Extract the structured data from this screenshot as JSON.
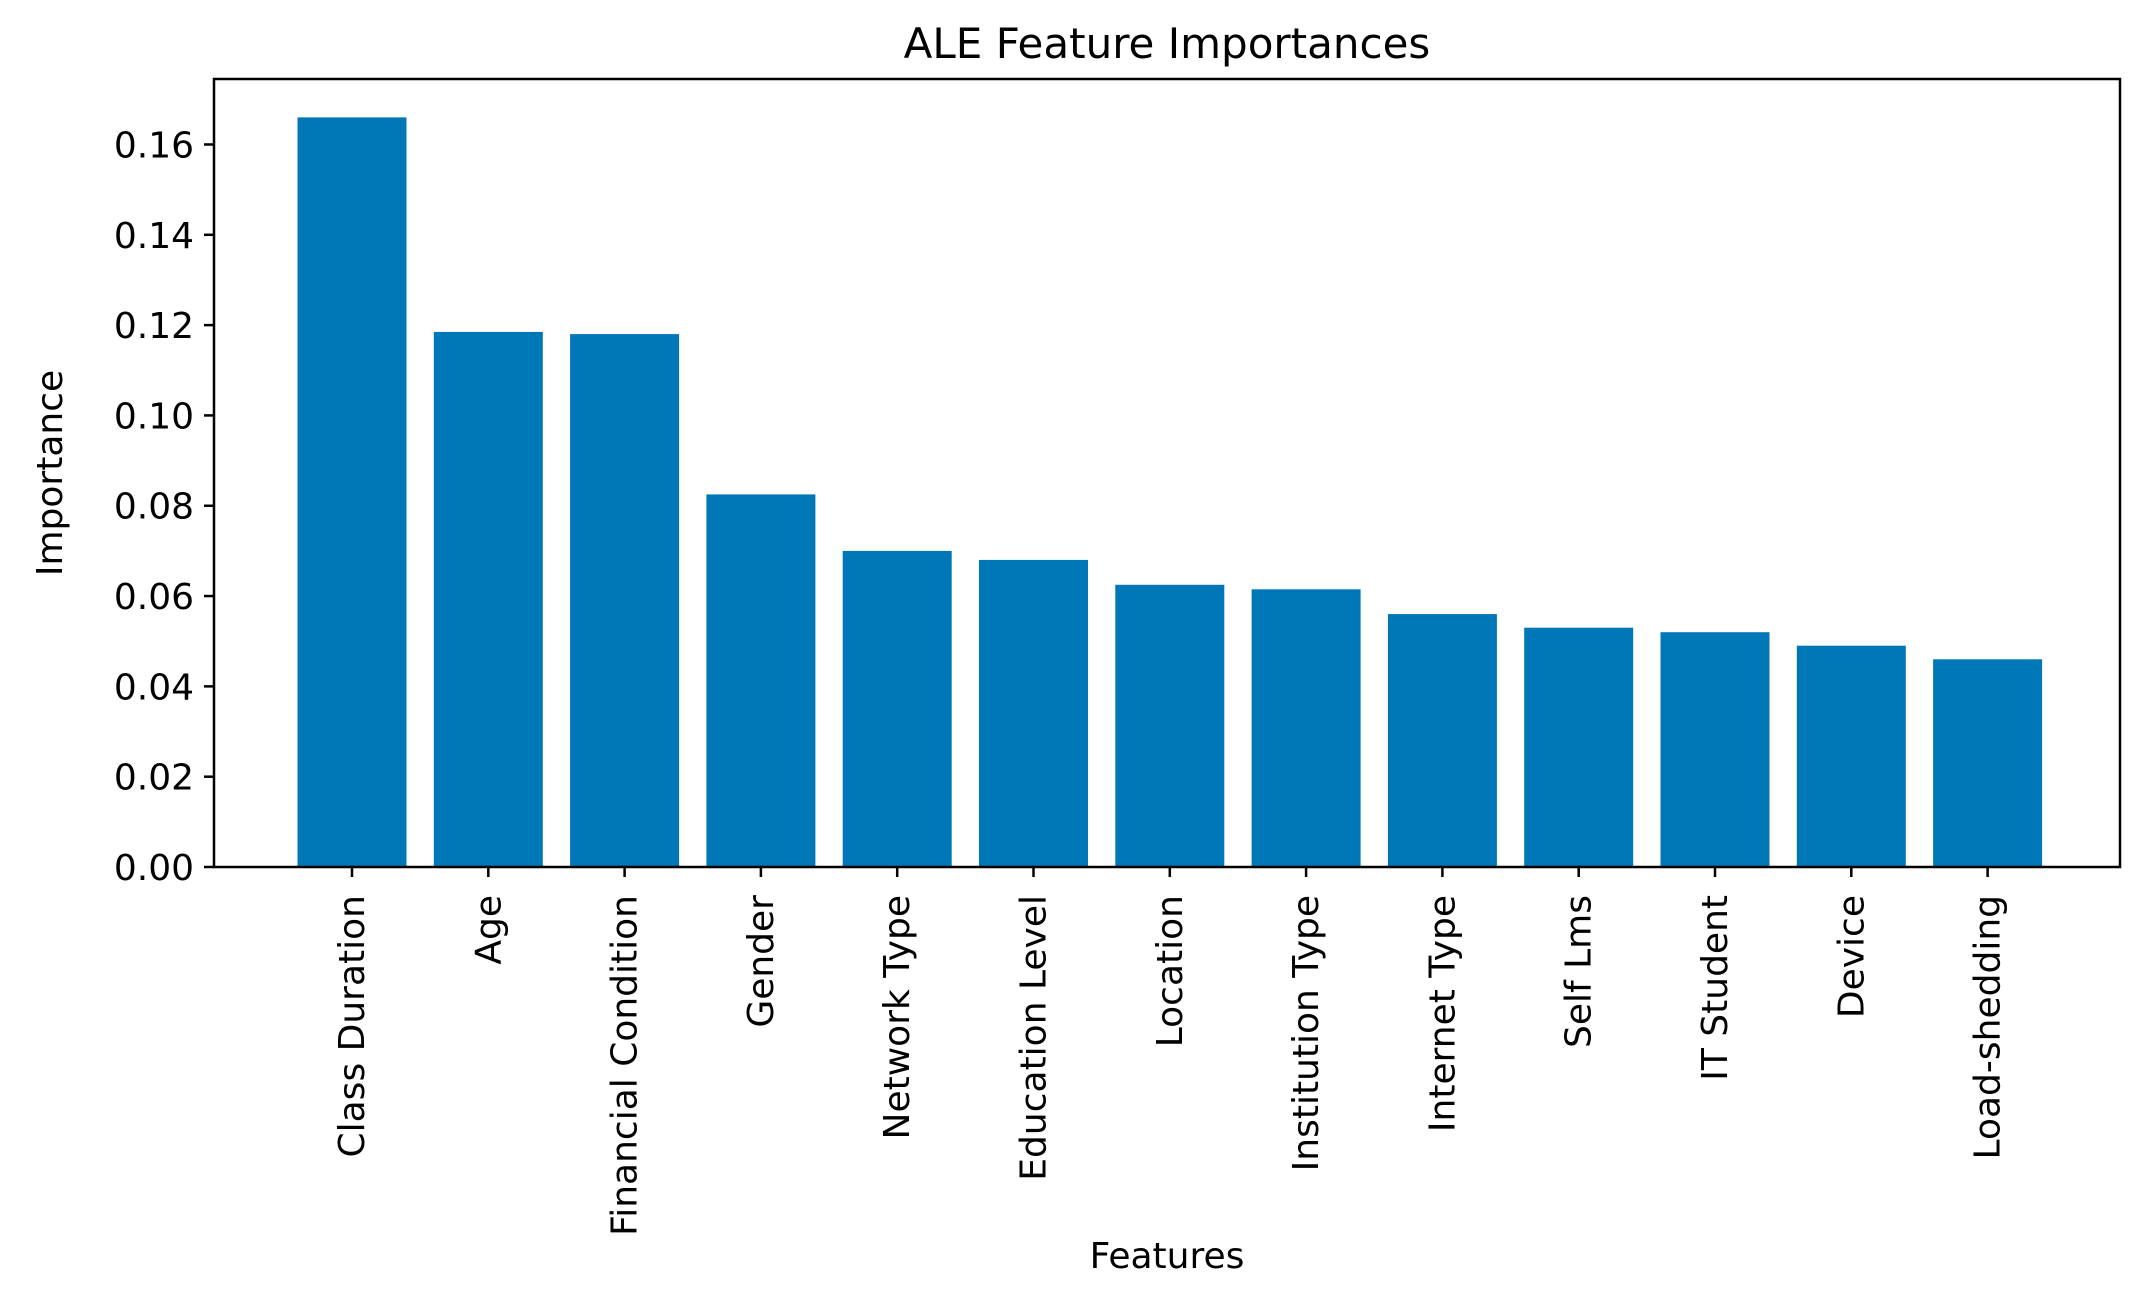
{
  "chart_data": {
    "type": "bar",
    "title": "ALE Feature Importances",
    "xlabel": "Features",
    "ylabel": "Importance",
    "categories": [
      "Class Duration",
      "Age",
      "Financial Condition",
      "Gender",
      "Network Type",
      "Education Level",
      "Location",
      "Institution Type",
      "Internet Type",
      "Self Lms",
      "IT Student",
      "Device",
      "Load-shedding"
    ],
    "values": [
      0.166,
      0.1185,
      0.118,
      0.0825,
      0.07,
      0.068,
      0.0625,
      0.0615,
      0.056,
      0.053,
      0.052,
      0.049,
      0.046
    ],
    "ylim": [
      0,
      0.1745
    ],
    "yticks": [
      "0.00",
      "0.02",
      "0.04",
      "0.06",
      "0.08",
      "0.10",
      "0.12",
      "0.14",
      "0.16"
    ],
    "ytick_values": [
      0,
      0.02,
      0.04,
      0.06,
      0.08,
      0.1,
      0.12,
      0.14,
      0.16
    ],
    "grid": false,
    "bar_color": "#0077b6"
  }
}
